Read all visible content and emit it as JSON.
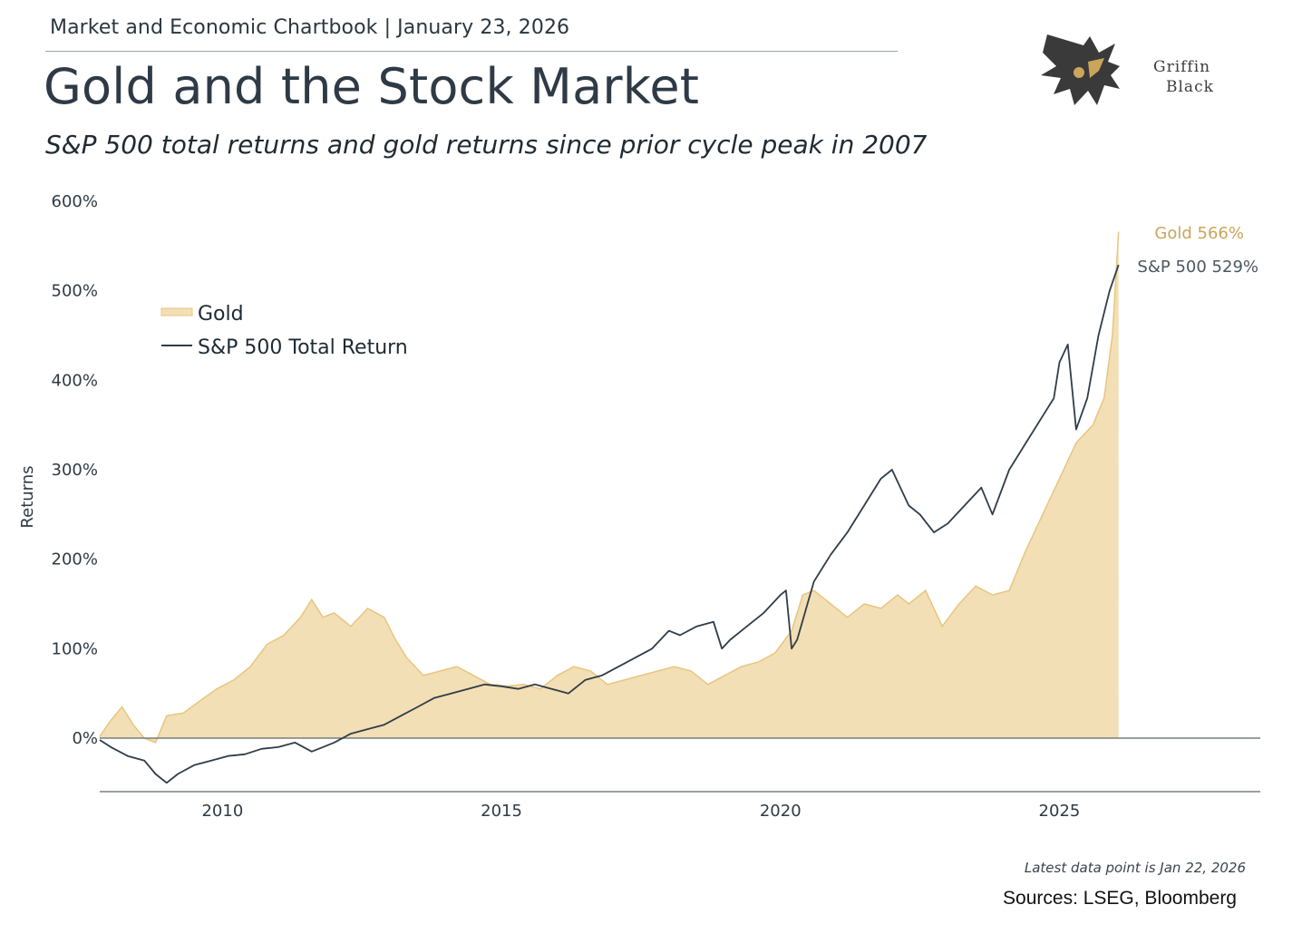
{
  "header": {
    "kicker": "Market and Economic Chartbook | January 23, 2026",
    "title": "Gold and the Stock Market",
    "subtitle": "S&P 500 total returns and gold returns since prior cycle peak in 2007"
  },
  "logo": {
    "line1": "Griffin",
    "line2": "Black",
    "icon": "griffin-emblem-icon"
  },
  "colors": {
    "gold": "#e8c57f",
    "gold_fill": "#f3dfb5",
    "sp500": "#2f3d49",
    "axis": "#5d666d"
  },
  "chart_data": {
    "type": "line",
    "ylabel": "Returns",
    "ylim": [
      -60,
      600
    ],
    "yticks": [
      0,
      100,
      200,
      300,
      400,
      500,
      600
    ],
    "ytick_labels": [
      "0%",
      "100%",
      "200%",
      "300%",
      "400%",
      "500%",
      "600%"
    ],
    "xlim": [
      2007.8,
      2028.6
    ],
    "xticks": [
      2010,
      2015,
      2020,
      2025
    ],
    "xtick_labels": [
      "2010",
      "2015",
      "2020",
      "2025"
    ],
    "legend_position": "upper-left",
    "series": [
      {
        "name": "Gold",
        "style": "area",
        "end_label": "Gold 566%",
        "x": [
          2007.8,
          2008.0,
          2008.2,
          2008.4,
          2008.6,
          2008.8,
          2009.0,
          2009.3,
          2009.6,
          2009.9,
          2010.2,
          2010.5,
          2010.8,
          2011.1,
          2011.4,
          2011.6,
          2011.8,
          2012.0,
          2012.3,
          2012.6,
          2012.9,
          2013.1,
          2013.3,
          2013.6,
          2013.9,
          2014.2,
          2014.5,
          2014.8,
          2015.1,
          2015.4,
          2015.7,
          2016.0,
          2016.3,
          2016.6,
          2016.9,
          2017.2,
          2017.5,
          2017.8,
          2018.1,
          2018.4,
          2018.7,
          2019.0,
          2019.3,
          2019.6,
          2019.9,
          2020.2,
          2020.4,
          2020.6,
          2020.9,
          2021.2,
          2021.5,
          2021.8,
          2022.1,
          2022.3,
          2022.6,
          2022.9,
          2023.2,
          2023.5,
          2023.8,
          2024.1,
          2024.4,
          2024.7,
          2025.0,
          2025.3,
          2025.6,
          2025.8,
          2025.95,
          2026.06
        ],
        "y": [
          2,
          20,
          35,
          15,
          0,
          -5,
          25,
          28,
          42,
          55,
          65,
          80,
          105,
          115,
          135,
          155,
          135,
          140,
          125,
          145,
          135,
          110,
          90,
          70,
          75,
          80,
          70,
          60,
          58,
          60,
          55,
          70,
          80,
          75,
          60,
          65,
          70,
          75,
          80,
          75,
          60,
          70,
          80,
          85,
          95,
          120,
          160,
          165,
          150,
          135,
          150,
          145,
          160,
          150,
          165,
          125,
          150,
          170,
          160,
          165,
          210,
          250,
          290,
          330,
          350,
          380,
          450,
          566
        ]
      },
      {
        "name": "S&P 500 Total Return",
        "style": "line",
        "end_label": "S&P 500 529%",
        "x": [
          2007.8,
          2008.0,
          2008.3,
          2008.6,
          2008.8,
          2009.0,
          2009.2,
          2009.5,
          2009.8,
          2010.1,
          2010.4,
          2010.7,
          2011.0,
          2011.3,
          2011.6,
          2011.8,
          2012.0,
          2012.3,
          2012.6,
          2012.9,
          2013.2,
          2013.5,
          2013.8,
          2014.1,
          2014.4,
          2014.7,
          2015.0,
          2015.3,
          2015.6,
          2015.9,
          2016.2,
          2016.5,
          2016.8,
          2017.1,
          2017.4,
          2017.7,
          2018.0,
          2018.2,
          2018.5,
          2018.8,
          2018.95,
          2019.1,
          2019.4,
          2019.7,
          2020.0,
          2020.1,
          2020.2,
          2020.3,
          2020.6,
          2020.9,
          2021.2,
          2021.5,
          2021.8,
          2022.0,
          2022.3,
          2022.5,
          2022.75,
          2023.0,
          2023.3,
          2023.6,
          2023.8,
          2024.1,
          2024.4,
          2024.7,
          2024.9,
          2025.0,
          2025.15,
          2025.3,
          2025.5,
          2025.7,
          2025.9,
          2026.06
        ],
        "y": [
          -2,
          -10,
          -20,
          -25,
          -40,
          -50,
          -40,
          -30,
          -25,
          -20,
          -18,
          -12,
          -10,
          -5,
          -15,
          -10,
          -5,
          5,
          10,
          15,
          25,
          35,
          45,
          50,
          55,
          60,
          58,
          55,
          60,
          55,
          50,
          65,
          70,
          80,
          90,
          100,
          120,
          115,
          125,
          130,
          100,
          110,
          125,
          140,
          160,
          165,
          100,
          110,
          175,
          205,
          230,
          260,
          290,
          300,
          260,
          250,
          230,
          240,
          260,
          280,
          250,
          300,
          330,
          360,
          380,
          420,
          440,
          345,
          380,
          450,
          500,
          529
        ]
      }
    ]
  },
  "footer": {
    "latest": "Latest data point is Jan 22, 2026",
    "sources": "Sources: LSEG, Bloomberg"
  }
}
